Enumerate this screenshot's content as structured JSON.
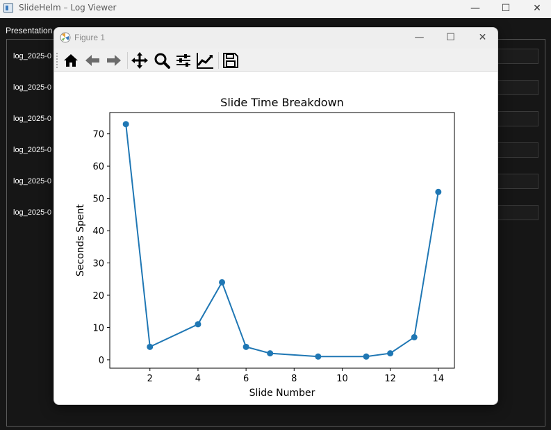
{
  "app": {
    "title": "SlideHelm – Log Viewer",
    "window_controls": {
      "minimize": "—",
      "maximize": "☐",
      "close": "✕"
    },
    "section_label": "Presentation",
    "logs": [
      "log_2025-0",
      "log_2025-0",
      "log_2025-0",
      "log_2025-0",
      "log_2025-0",
      "log_2025-0"
    ]
  },
  "figure": {
    "title": "Figure 1",
    "window_controls": {
      "minimize": "—",
      "maximize": "☐",
      "close": "✕"
    },
    "toolbar": [
      "home",
      "back",
      "forward",
      "pan",
      "zoom",
      "configure-subplots",
      "edit-axis",
      "save"
    ]
  },
  "chart_data": {
    "type": "line",
    "title": "Slide Time Breakdown",
    "xlabel": "Slide Number",
    "ylabel": "Seconds Spent",
    "x": [
      1,
      2,
      4,
      5,
      6,
      7,
      9,
      11,
      12,
      13,
      14
    ],
    "series": [
      {
        "values": [
          73,
          4,
          11,
          24,
          4,
          2,
          1,
          1,
          2,
          7,
          52
        ],
        "color": "#1f77b4",
        "marker": "circle"
      }
    ],
    "xlim": [
      0.33,
      14.67
    ],
    "ylim": [
      -2.6,
      76.6
    ],
    "xticks": [
      2,
      4,
      6,
      8,
      10,
      12,
      14
    ],
    "yticks": [
      0,
      10,
      20,
      30,
      40,
      50,
      60,
      70
    ],
    "grid": false
  }
}
